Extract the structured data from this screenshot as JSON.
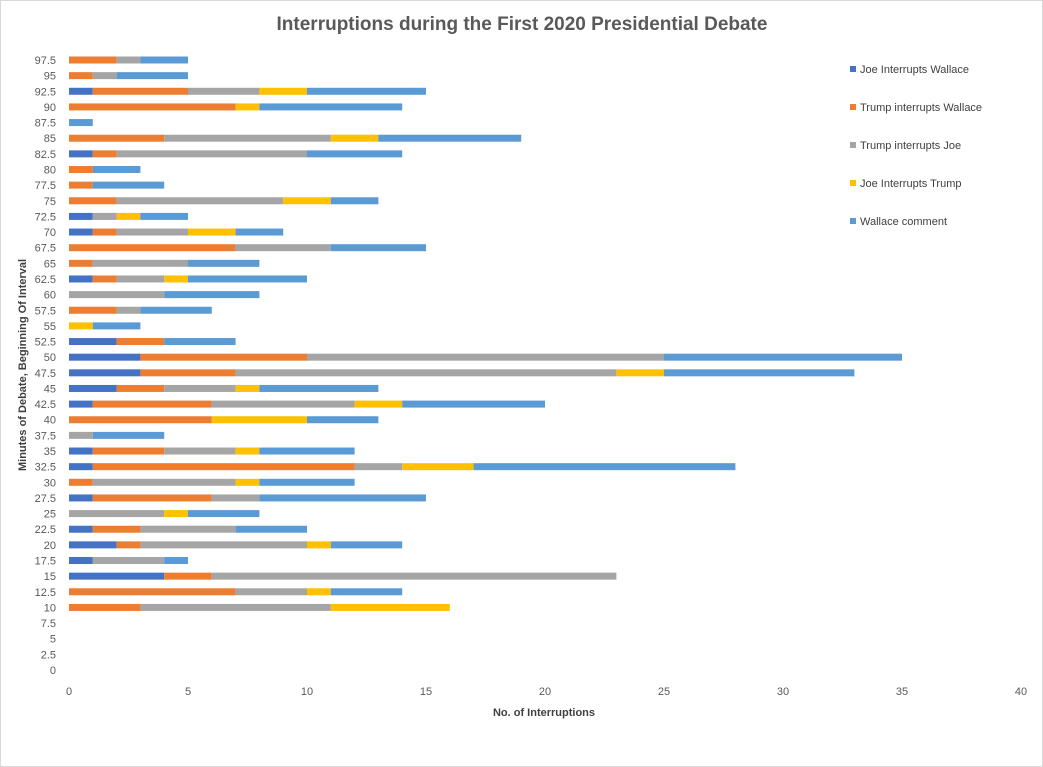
{
  "chart_data": {
    "type": "bar",
    "orientation": "horizontal",
    "stacked": true,
    "title": "Interruptions  during  the First 2020 Presidential  Debate",
    "xlabel": "No. of Interruptions",
    "ylabel": "Minutes of Debate, Beginning Of Interval",
    "xlim": [
      0,
      40
    ],
    "x_ticks": [
      "0",
      "5",
      "10",
      "15",
      "20",
      "25",
      "30",
      "35",
      "40"
    ],
    "grid": false,
    "legend_position": "right",
    "categories": [
      "0",
      "2.5",
      "5",
      "7.5",
      "10",
      "12.5",
      "15",
      "17.5",
      "20",
      "22.5",
      "25",
      "27.5",
      "30",
      "32.5",
      "35",
      "37.5",
      "40",
      "42.5",
      "45",
      "47.5",
      "50",
      "52.5",
      "55",
      "57.5",
      "60",
      "62.5",
      "65",
      "67.5",
      "70",
      "72.5",
      "75",
      "77.5",
      "80",
      "82.5",
      "85",
      "87.5",
      "90",
      "92.5",
      "95",
      "97.5"
    ],
    "series": [
      {
        "name": "Joe Interrupts Wallace",
        "color": "#4472c4",
        "values": [
          0,
          0,
          0,
          0,
          0,
          0,
          4,
          1,
          2,
          1,
          0,
          1,
          0,
          1,
          1,
          0,
          0,
          1,
          2,
          3,
          3,
          2,
          0,
          0,
          0,
          1,
          0,
          0,
          1,
          1,
          0,
          0,
          0,
          1,
          0,
          0,
          0,
          1,
          0,
          0
        ]
      },
      {
        "name": "Trump interrupts Wallace",
        "color": "#ed7d31",
        "values": [
          0,
          0,
          0,
          0,
          3,
          7,
          2,
          0,
          1,
          2,
          0,
          5,
          1,
          11,
          3,
          0,
          6,
          5,
          2,
          4,
          7,
          2,
          0,
          2,
          0,
          1,
          1,
          7,
          1,
          0,
          2,
          1,
          1,
          1,
          4,
          0,
          7,
          4,
          1,
          2
        ]
      },
      {
        "name": "Trump interrupts Joe",
        "color": "#a5a5a5",
        "values": [
          0,
          0,
          0,
          0,
          8,
          3,
          17,
          3,
          7,
          4,
          4,
          2,
          6,
          2,
          3,
          1,
          0,
          6,
          3,
          16,
          15,
          0,
          0,
          1,
          4,
          2,
          4,
          4,
          3,
          1,
          7,
          0,
          0,
          8,
          7,
          0,
          0,
          3,
          1,
          1
        ]
      },
      {
        "name": "Joe Interrupts Trump",
        "color": "#ffc000",
        "values": [
          0,
          0,
          0,
          0,
          5,
          1,
          0,
          0,
          1,
          0,
          1,
          0,
          1,
          3,
          1,
          0,
          4,
          2,
          1,
          2,
          0,
          0,
          1,
          0,
          0,
          1,
          0,
          0,
          2,
          1,
          2,
          0,
          0,
          0,
          2,
          0,
          1,
          2,
          0,
          0
        ]
      },
      {
        "name": "Wallace comment",
        "color": "#5b9bd5",
        "values": [
          0,
          0,
          0,
          0,
          0,
          3,
          0,
          1,
          3,
          3,
          3,
          7,
          4,
          11,
          4,
          3,
          3,
          6,
          5,
          8,
          10,
          3,
          2,
          3,
          4,
          5,
          3,
          4,
          2,
          2,
          2,
          3,
          2,
          4,
          6,
          1,
          6,
          5,
          3,
          2
        ]
      }
    ]
  }
}
